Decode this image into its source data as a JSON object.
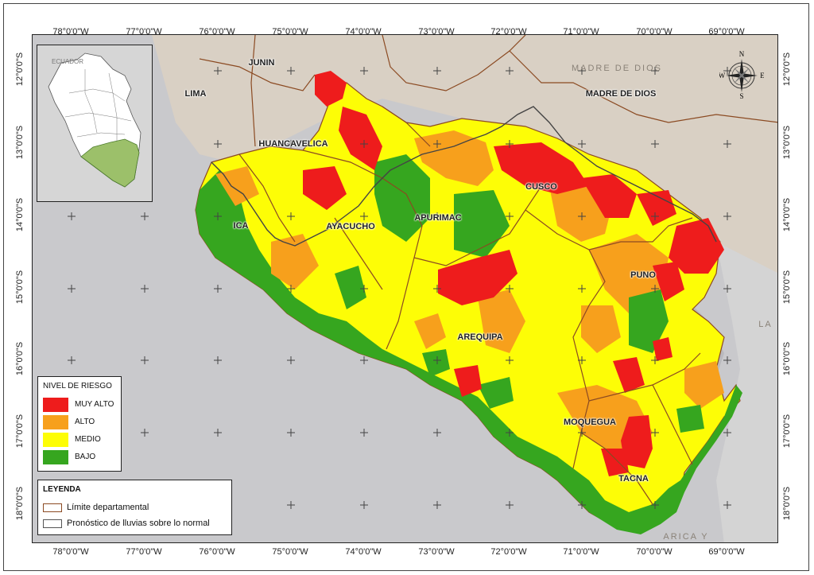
{
  "coords": {
    "longitudes": [
      "78°0'0\"W",
      "77°0'0\"W",
      "76°0'0\"W",
      "75°0'0\"W",
      "74°0'0\"W",
      "73°0'0\"W",
      "72°0'0\"W",
      "71°0'0\"W",
      "70°0'0\"W",
      "69°0'0\"W"
    ],
    "latitudes": [
      "12°0'0\"S",
      "13°0'0\"S",
      "14°0'0\"S",
      "15°0'0\"S",
      "16°0'0\"S",
      "17°0'0\"S",
      "18°0'0\"S"
    ]
  },
  "departments": {
    "junin": "JUNIN",
    "lima": "LIMA",
    "huancavelica": "HUANCAVELICA",
    "ica": "ICA",
    "ayacucho": "AYACUCHO",
    "apurimac": "APURIMAC",
    "cusco": "CUSCO",
    "madre_de_dios": "MADRE DE DIOS",
    "madre_de_dios_faint": "MADRE DE DIOS",
    "puno": "PUNO",
    "arequipa": "AREQUIPA",
    "moquegua": "MOQUEGUA",
    "tacna": "TACNA",
    "la": "LA",
    "arica": "ARICA Y"
  },
  "inset": {
    "label": "ECUADOR"
  },
  "compass": {
    "n": "N",
    "s": "S",
    "e": "E",
    "w": "W"
  },
  "risk_legend": {
    "title": "NIVEL DE RIESGO",
    "items": [
      {
        "label": "MUY ALTO",
        "color": "#ee1c1c"
      },
      {
        "label": "ALTO",
        "color": "#f7a01c"
      },
      {
        "label": "MEDIO",
        "color": "#fdfd06"
      },
      {
        "label": "BAJO",
        "color": "#36a61f"
      }
    ]
  },
  "legend": {
    "title": "LEYENDA",
    "items": [
      {
        "label": "Límite departamental",
        "color": "#8b4a22"
      },
      {
        "label": "Pronóstico de lluvias sobre lo normal",
        "color": "#555555"
      }
    ]
  }
}
